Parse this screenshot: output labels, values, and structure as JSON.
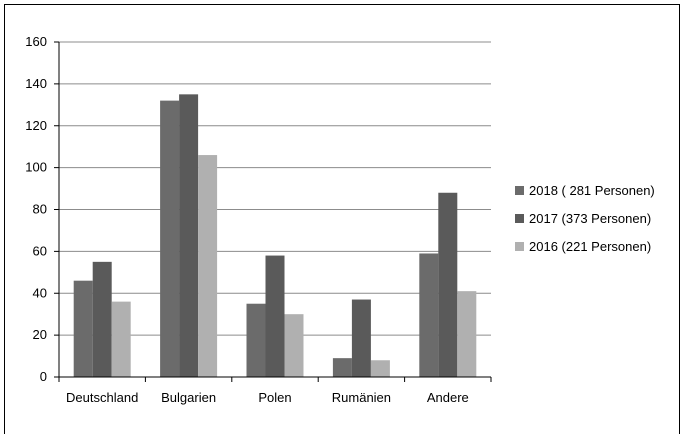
{
  "chart_data": {
    "type": "bar",
    "categories": [
      "Deutschland",
      "Bulgarien",
      "Polen",
      "Rumänien",
      "Andere"
    ],
    "series": [
      {
        "name": "2018 ( 281 Personen)",
        "values": [
          46,
          132,
          35,
          9,
          59
        ],
        "color": "#6b6b6b"
      },
      {
        "name": "2017 (373 Personen)",
        "values": [
          55,
          135,
          58,
          37,
          88
        ],
        "color": "#5a5a5a"
      },
      {
        "name": "2016 (221 Personen)",
        "values": [
          36,
          106,
          30,
          8,
          41
        ],
        "color": "#b0b0b0"
      }
    ],
    "yticks": [
      0,
      20,
      40,
      60,
      80,
      100,
      120,
      140,
      160
    ],
    "ylim": [
      0,
      160
    ],
    "grid": true,
    "legend_position": "right",
    "title": "",
    "xlabel": "",
    "ylabel": ""
  }
}
